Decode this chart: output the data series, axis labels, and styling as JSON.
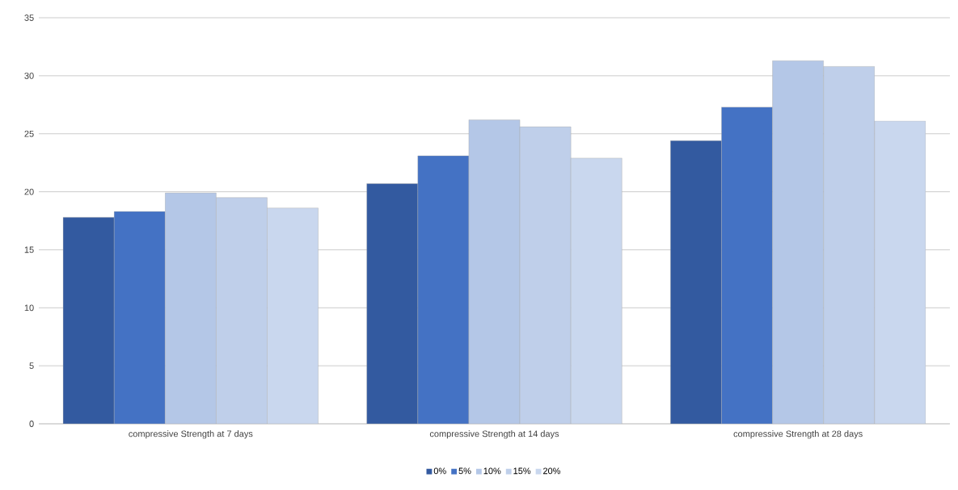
{
  "chart_data": {
    "type": "bar",
    "categories": [
      "compressive Strength at 7 days",
      "compressive Strength at 14 days",
      "compressive Strength at 28 days"
    ],
    "series": [
      {
        "name": "0%",
        "color": "#335aa0",
        "values": [
          17.8,
          20.7,
          24.4
        ]
      },
      {
        "name": "5%",
        "color": "#4472c4",
        "values": [
          18.3,
          23.1,
          27.3
        ]
      },
      {
        "name": "10%",
        "color": "#b4c7e7",
        "values": [
          19.9,
          26.2,
          31.3
        ]
      },
      {
        "name": "15%",
        "color": "#bfcfea",
        "values": [
          19.5,
          25.6,
          30.8
        ]
      },
      {
        "name": "20%",
        "color": "#c9d7ee",
        "values": [
          18.6,
          22.9,
          26.1
        ]
      }
    ],
    "ylim": [
      0,
      35
    ],
    "yticks": [
      0,
      5,
      10,
      15,
      20,
      25,
      30,
      35
    ],
    "grid": "y",
    "legend": "bottom"
  }
}
